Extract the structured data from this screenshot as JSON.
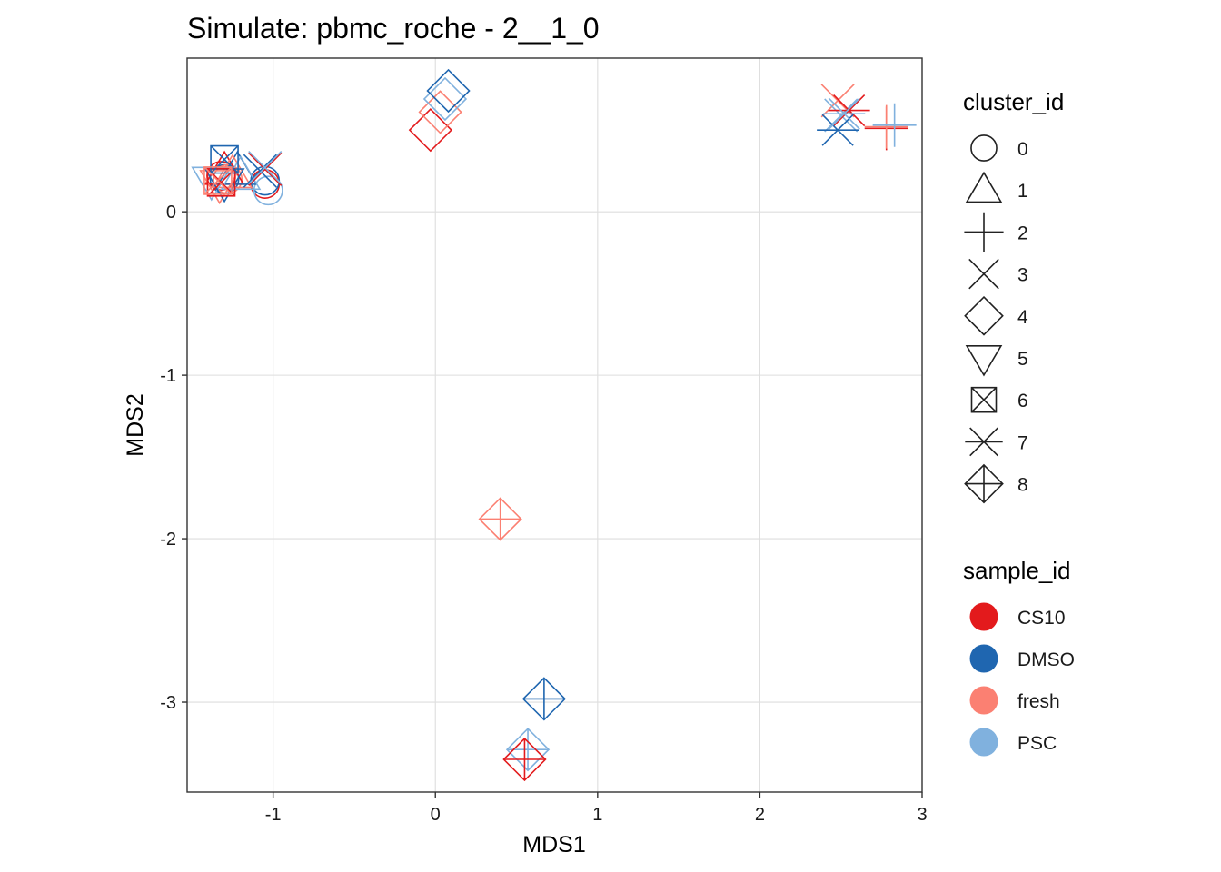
{
  "chart_data": {
    "type": "scatter",
    "title": "Simulate: pbmc_roche - 2__1_0",
    "xlabel": "MDS1",
    "ylabel": "MDS2",
    "xlim": [
      -1.53,
      3.0
    ],
    "ylim": [
      -3.55,
      0.94
    ],
    "xticks": [
      -1,
      0,
      1,
      2,
      3
    ],
    "yticks": [
      0,
      -1,
      -2,
      -3
    ],
    "grid": true,
    "legend_placement": "right",
    "shape_legend": {
      "title": "cluster_id",
      "items": [
        {
          "label": "0",
          "shape": "circle"
        },
        {
          "label": "1",
          "shape": "triangle"
        },
        {
          "label": "2",
          "shape": "plus"
        },
        {
          "label": "3",
          "shape": "cross"
        },
        {
          "label": "4",
          "shape": "diamond"
        },
        {
          "label": "5",
          "shape": "triangle-down"
        },
        {
          "label": "6",
          "shape": "square-cross"
        },
        {
          "label": "7",
          "shape": "asterisk"
        },
        {
          "label": "8",
          "shape": "diamond-plus"
        }
      ]
    },
    "color_legend": {
      "title": "sample_id",
      "items": [
        {
          "label": "CS10",
          "color": "#e31a1c"
        },
        {
          "label": "DMSO",
          "color": "#1f66b0"
        },
        {
          "label": "fresh",
          "color": "#fb8072"
        },
        {
          "label": "PSC",
          "color": "#80b1de"
        }
      ]
    },
    "points": [
      {
        "x": -1.32,
        "y": 0.22,
        "cluster": "0",
        "sample": "CS10"
      },
      {
        "x": -1.05,
        "y": 0.17,
        "cluster": "0",
        "sample": "CS10"
      },
      {
        "x": -1.3,
        "y": 0.2,
        "cluster": "0",
        "sample": "DMSO"
      },
      {
        "x": -1.05,
        "y": 0.19,
        "cluster": "0",
        "sample": "DMSO"
      },
      {
        "x": -1.28,
        "y": 0.2,
        "cluster": "0",
        "sample": "fresh"
      },
      {
        "x": -1.03,
        "y": 0.13,
        "cluster": "0",
        "sample": "PSC"
      },
      {
        "x": -1.3,
        "y": 0.25,
        "cluster": "1",
        "sample": "CS10"
      },
      {
        "x": -1.22,
        "y": 0.25,
        "cluster": "1",
        "sample": "DMSO"
      },
      {
        "x": -1.25,
        "y": 0.23,
        "cluster": "1",
        "sample": "fresh"
      },
      {
        "x": -1.2,
        "y": 0.22,
        "cluster": "1",
        "sample": "PSC"
      },
      {
        "x": -1.05,
        "y": 0.26,
        "cluster": "3",
        "sample": "CS10"
      },
      {
        "x": -1.08,
        "y": 0.25,
        "cluster": "3",
        "sample": "DMSO"
      },
      {
        "x": -1.05,
        "y": 0.27,
        "cluster": "3",
        "sample": "PSC"
      },
      {
        "x": -1.38,
        "y": 0.19,
        "cluster": "5",
        "sample": "PSC"
      },
      {
        "x": -1.33,
        "y": 0.17,
        "cluster": "5",
        "sample": "fresh"
      },
      {
        "x": -1.3,
        "y": 0.18,
        "cluster": "5",
        "sample": "DMSO"
      },
      {
        "x": -1.32,
        "y": 0.18,
        "cluster": "6",
        "sample": "CS10"
      },
      {
        "x": -1.3,
        "y": 0.32,
        "cluster": "6",
        "sample": "DMSO"
      },
      {
        "x": -1.34,
        "y": 0.19,
        "cluster": "6",
        "sample": "fresh"
      },
      {
        "x": -0.03,
        "y": 0.5,
        "cluster": "4",
        "sample": "CS10"
      },
      {
        "x": 0.03,
        "y": 0.61,
        "cluster": "4",
        "sample": "fresh"
      },
      {
        "x": 0.06,
        "y": 0.69,
        "cluster": "4",
        "sample": "PSC"
      },
      {
        "x": 0.08,
        "y": 0.74,
        "cluster": "4",
        "sample": "DMSO"
      },
      {
        "x": 2.78,
        "y": 0.51,
        "cluster": "2",
        "sample": "CS10"
      },
      {
        "x": 2.78,
        "y": 0.52,
        "cluster": "2",
        "sample": "fresh"
      },
      {
        "x": 2.83,
        "y": 0.53,
        "cluster": "2",
        "sample": "PSC"
      },
      {
        "x": 2.48,
        "y": 0.68,
        "cluster": "3",
        "sample": "fresh"
      },
      {
        "x": 2.5,
        "y": 0.59,
        "cluster": "3",
        "sample": "PSC"
      },
      {
        "x": 2.55,
        "y": 0.62,
        "cluster": "7",
        "sample": "CS10"
      },
      {
        "x": 2.48,
        "y": 0.5,
        "cluster": "7",
        "sample": "DMSO"
      },
      {
        "x": 2.52,
        "y": 0.6,
        "cluster": "7",
        "sample": "PSC"
      },
      {
        "x": 0.4,
        "y": -1.88,
        "cluster": "8",
        "sample": "fresh"
      },
      {
        "x": 0.67,
        "y": -2.98,
        "cluster": "8",
        "sample": "DMSO"
      },
      {
        "x": 0.57,
        "y": -3.29,
        "cluster": "8",
        "sample": "PSC"
      },
      {
        "x": 0.55,
        "y": -3.35,
        "cluster": "8",
        "sample": "CS10"
      }
    ]
  }
}
